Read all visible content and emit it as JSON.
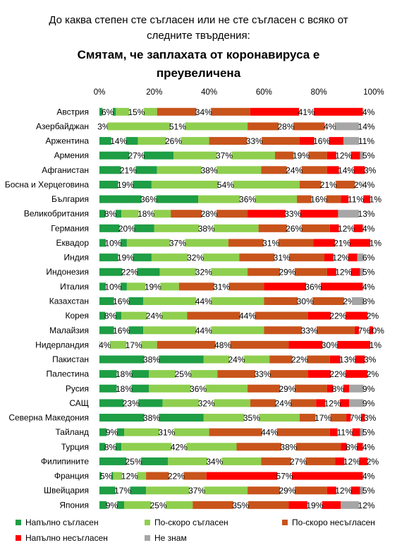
{
  "title": {
    "line1": "До каква степен сте съгласен или не сте съгласен с всяко от",
    "line2": "следните твърдения:",
    "line3": "Смятам, че заплахата от коронавируса е",
    "line4": "преувеличена"
  },
  "chart_data": {
    "type": "bar",
    "orientation": "horizontal",
    "stacked": true,
    "xlim": [
      0,
      100
    ],
    "x_ticks": [
      "0%",
      "20%",
      "40%",
      "60%",
      "80%",
      "100%"
    ],
    "legend_position": "bottom",
    "categories": [
      "Австрия",
      "Азербайджан",
      "Аржентина",
      "Армения",
      "Афганистан",
      "Босна и Херцеговина",
      "България",
      "Великобритания",
      "Германия",
      "Еквадор",
      "Индия",
      "Индонезия",
      "Италия",
      "Казахстан",
      "Корея",
      "Малайзия",
      "Нидерландия",
      "Пакистан",
      "Палестина",
      "Русия",
      "САЩ",
      "Северна Македония",
      "Тайланд",
      "Турция",
      "Филипините",
      "Франция",
      "Швейцария",
      "Япония"
    ],
    "series": [
      {
        "name": "Напълно съгласен",
        "color": "#1e9e45",
        "values": [
          6,
          3,
          14,
          27,
          21,
          19,
          36,
          8,
          20,
          10,
          19,
          22,
          10,
          16,
          8,
          16,
          4,
          38,
          18,
          18,
          23,
          38,
          9,
          8,
          25,
          5,
          17,
          9
        ]
      },
      {
        "name": "По-скоро съгласен",
        "color": "#8fcf4f",
        "values": [
          15,
          51,
          26,
          37,
          38,
          54,
          36,
          18,
          38,
          37,
          32,
          32,
          19,
          44,
          24,
          44,
          17,
          24,
          25,
          36,
          32,
          35,
          31,
          42,
          34,
          12,
          37,
          25
        ]
      },
      {
        "name": "По-скоро несъгласен",
        "color": "#c8541b",
        "values": [
          34,
          28,
          33,
          19,
          24,
          21,
          16,
          28,
          26,
          31,
          31,
          29,
          31,
          30,
          44,
          33,
          48,
          22,
          33,
          29,
          24,
          17,
          44,
          38,
          27,
          22,
          29,
          35
        ]
      },
      {
        "name": "Напълно несъгласен",
        "color": "#ff0000",
        "values": [
          41,
          4,
          16,
          12,
          14,
          2,
          11,
          33,
          12,
          21,
          12,
          12,
          36,
          2,
          22,
          7,
          30,
          13,
          22,
          8,
          12,
          7,
          11,
          8,
          12,
          57,
          12,
          19
        ]
      },
      {
        "name": "Не знам",
        "color": "#a6a6a6",
        "values": [
          4,
          14,
          11,
          5,
          3,
          4,
          1,
          13,
          4,
          1,
          6,
          5,
          4,
          8,
          2,
          0,
          1,
          3,
          2,
          9,
          9,
          3,
          5,
          4,
          2,
          4,
          5,
          12
        ]
      }
    ],
    "labels": [
      [
        "6%",
        "15%",
        "34%",
        "41%",
        "4%"
      ],
      [
        "3%",
        "51%",
        "28%",
        "4%",
        "14%"
      ],
      [
        "14%",
        "26%",
        "33%",
        "16%",
        "11%"
      ],
      [
        "27%",
        "37%",
        "19%",
        "12%",
        "5%"
      ],
      [
        "21%",
        "38%",
        "24%",
        "14%",
        "3%"
      ],
      [
        "19%",
        "54%",
        "21%",
        "2%",
        "4%"
      ],
      [
        "36%",
        "36%",
        "16%",
        "11%",
        "1%"
      ],
      [
        "8%",
        "18%",
        "28%",
        "33%",
        "13%"
      ],
      [
        "20%",
        "38%",
        "26%",
        "12%",
        "4%"
      ],
      [
        "10%",
        "37%",
        "31%",
        "21%",
        "1%"
      ],
      [
        "19%",
        "32%",
        "31%",
        "12%",
        "6%"
      ],
      [
        "22%",
        "32%",
        "29%",
        "12%",
        "5%"
      ],
      [
        "10%",
        "19%",
        "31%",
        "36%",
        "4%"
      ],
      [
        "16%",
        "44%",
        "30%",
        "2%",
        "8%"
      ],
      [
        "8%",
        "24%",
        "44%",
        "22%",
        "2%"
      ],
      [
        "16%",
        "44%",
        "33%",
        "7%",
        "0%"
      ],
      [
        "4%",
        "17%",
        "48%",
        "30%",
        "1%"
      ],
      [
        "38%",
        "24%",
        "22%",
        "13%",
        "3%"
      ],
      [
        "18%",
        "25%",
        "33%",
        "22%",
        "2%"
      ],
      [
        "18%",
        "36%",
        "29%",
        "8%",
        "9%"
      ],
      [
        "23%",
        "32%",
        "24%",
        "12%",
        "9%"
      ],
      [
        "38%",
        "35%",
        "17%",
        "7%",
        "3%"
      ],
      [
        "9%",
        "31%",
        "44%",
        "11%",
        "5%"
      ],
      [
        "8%",
        "42%",
        "38%",
        "8%",
        "4%"
      ],
      [
        "25%",
        "34%",
        "27%",
        "12%",
        "2%"
      ],
      [
        "5%",
        "12%",
        "22%",
        "57%",
        "4%"
      ],
      [
        "17%",
        "37%",
        "29%",
        "12%",
        "5%"
      ],
      [
        "9%",
        "25%",
        "35%",
        "19%",
        "12%"
      ]
    ]
  }
}
